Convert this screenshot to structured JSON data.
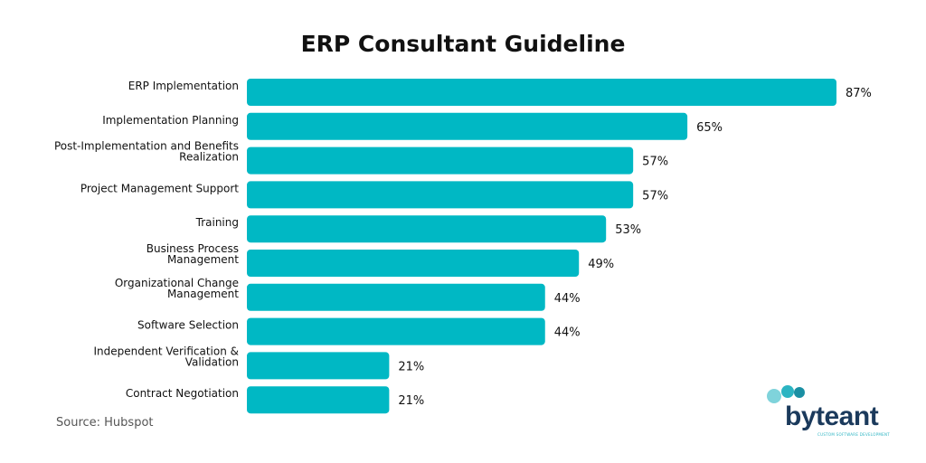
{
  "chart_data": {
    "type": "bar",
    "orientation": "horizontal",
    "title": "ERP Consultant Guideline",
    "categories": [
      "ERP Implementation",
      "Implementation Planning",
      "Post-Implementation and Benefits Realization",
      "Project Management Support",
      "Training",
      "Business Process Management",
      "Organizational Change Management",
      "Software Selection",
      "Independent Verification & Validation",
      "Contract Negotiation"
    ],
    "category_lines": [
      [
        "ERP Implementation"
      ],
      [
        "Implementation Planning"
      ],
      [
        "Post-Implementation and Benefits",
        "Realization"
      ],
      [
        "Project Management Support"
      ],
      [
        "Training"
      ],
      [
        "Business Process",
        "Management"
      ],
      [
        "Organizational Change",
        "Management"
      ],
      [
        "Software Selection"
      ],
      [
        "Independent Verification &",
        "Validation"
      ],
      [
        "Contract Negotiation"
      ]
    ],
    "values": [
      87,
      65,
      57,
      57,
      53,
      49,
      44,
      44,
      21,
      21
    ],
    "value_labels": [
      "87%",
      "65%",
      "57%",
      "57%",
      "53%",
      "49%",
      "44%",
      "44%",
      "21%",
      "21%"
    ],
    "unit": "%",
    "xlim": [
      0,
      87
    ],
    "grid": false,
    "legend": "none",
    "bar_color": "#00b8c4"
  },
  "source": "Source: Hubspot",
  "logo": {
    "name": "byteant",
    "tagline": "CUSTOM SOFTWARE DEVELOPMENT",
    "text_color": "#1b3a5c",
    "dot_colors": [
      "#7fd3db",
      "#2bb4c2",
      "#1a8fa3"
    ]
  }
}
